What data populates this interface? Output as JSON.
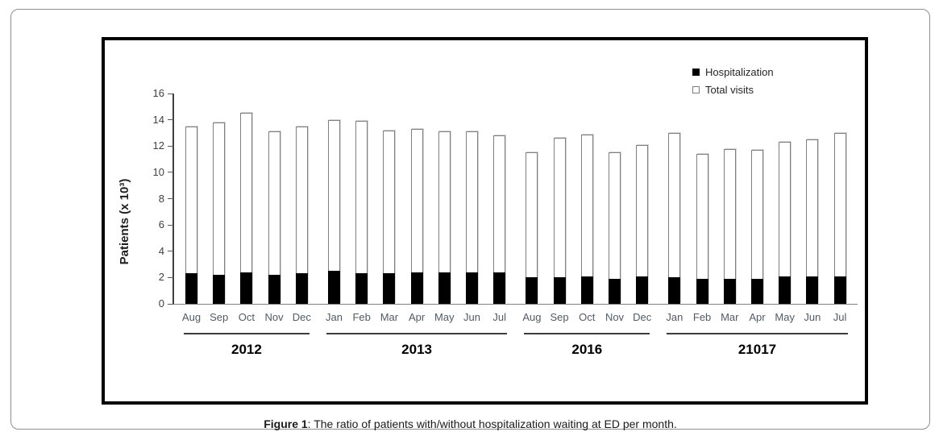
{
  "caption": {
    "prefix": "Figure 1",
    "text": ": The ratio of patients with/without hospitalization waiting at ED per month."
  },
  "colors": {
    "frame_border": "#8f8f8f",
    "chart_border": "#000000",
    "total_visits_fill": "#ffffff",
    "total_visits_border": "#7f7f7f",
    "hospitalization_fill": "#000000",
    "axis_text": "#4f5b66",
    "year_text": "#000000"
  },
  "chart_data": {
    "type": "bar",
    "subtype": "overlapped-stacked-columns",
    "title": "",
    "xlabel": "",
    "ylabel": "Patients (x 10³)",
    "ylim": [
      0,
      16
    ],
    "ytick_step": 2,
    "yticks": [
      0,
      2,
      4,
      6,
      8,
      10,
      12,
      14,
      16
    ],
    "grid": false,
    "legend_position": "top-right-inside",
    "legend": [
      {
        "label": "Hospitalization",
        "swatch": "filled-black"
      },
      {
        "label": "Total visits",
        "swatch": "outline-white"
      }
    ],
    "groups": [
      {
        "year": "2012",
        "months": [
          "Aug",
          "Sep",
          "Oct",
          "Nov",
          "Dec"
        ]
      },
      {
        "year": "2013",
        "months": [
          "Jan",
          "Feb",
          "Mar",
          "Apr",
          "May",
          "Jun",
          "Jul"
        ]
      },
      {
        "year": "2016",
        "months": [
          "Aug",
          "Sep",
          "Oct",
          "Nov",
          "Dec"
        ]
      },
      {
        "year": "21017",
        "months": [
          "Jan",
          "Feb",
          "Mar",
          "Apr",
          "May",
          "Jun",
          "Jul"
        ]
      }
    ],
    "categories": [
      "Aug",
      "Sep",
      "Oct",
      "Nov",
      "Dec",
      "Jan",
      "Feb",
      "Mar",
      "Apr",
      "May",
      "Jun",
      "Jul",
      "Aug",
      "Sep",
      "Oct",
      "Nov",
      "Dec",
      "Jan",
      "Feb",
      "Mar",
      "Apr",
      "May",
      "Jun",
      "Jul"
    ],
    "series": [
      {
        "name": "Total visits",
        "values": [
          13.5,
          13.8,
          14.5,
          13.1,
          13.5,
          14.0,
          13.9,
          13.2,
          13.3,
          13.1,
          13.1,
          12.8,
          11.5,
          12.6,
          12.9,
          11.5,
          12.1,
          13.0,
          11.4,
          11.8,
          11.7,
          12.3,
          12.5,
          13.0
        ]
      },
      {
        "name": "Hospitalization",
        "values": [
          2.3,
          2.2,
          2.4,
          2.2,
          2.3,
          2.5,
          2.3,
          2.3,
          2.4,
          2.4,
          2.4,
          2.4,
          2.0,
          2.0,
          2.1,
          1.9,
          2.1,
          2.0,
          1.9,
          1.9,
          1.9,
          2.1,
          2.1,
          2.1
        ]
      }
    ]
  }
}
